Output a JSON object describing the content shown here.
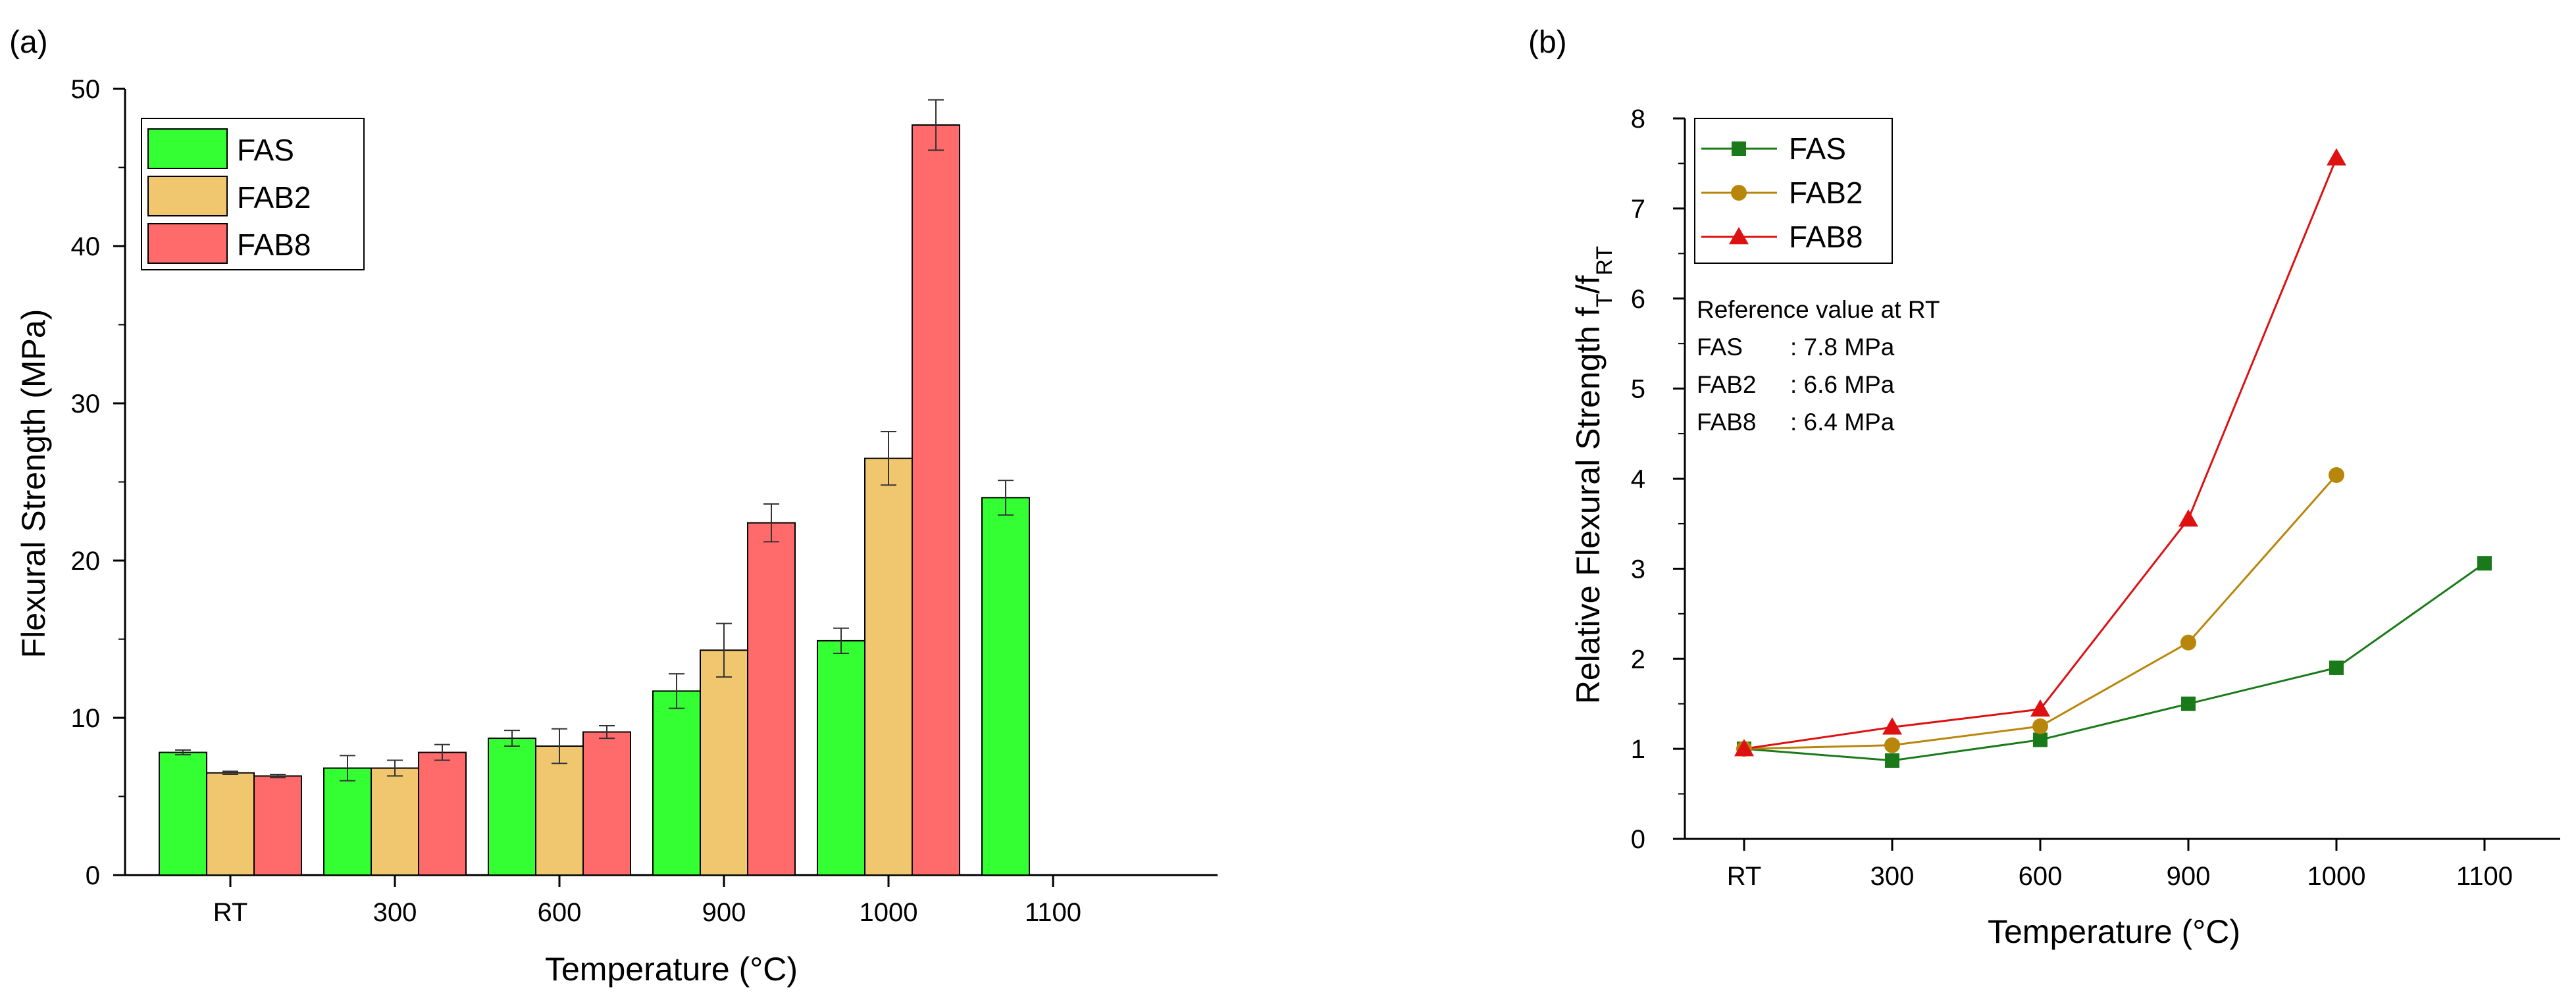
{
  "chart_data": [
    {
      "type": "bar",
      "panel_label": "(a)",
      "xlabel": "Temperature (°C)",
      "ylabel": "Flexural Strength (MPa)",
      "ylim": [
        0,
        50
      ],
      "yticks": [
        "0",
        "10",
        "20",
        "30",
        "40",
        "50"
      ],
      "categories": [
        "RT",
        "300",
        "600",
        "900",
        "1000",
        "1100"
      ],
      "legend_position": "top-left",
      "series": [
        {
          "name": "FAS",
          "color": "#33ff33",
          "values": [
            7.8,
            6.8,
            8.7,
            11.7,
            14.9,
            24.0
          ],
          "errors": [
            0.15,
            0.8,
            0.5,
            1.1,
            0.8,
            1.1
          ]
        },
        {
          "name": "FAB2",
          "color": "#f0c66e",
          "values": [
            6.5,
            6.8,
            8.2,
            14.3,
            26.5,
            null
          ],
          "errors": [
            0.1,
            0.5,
            1.1,
            1.7,
            1.7,
            null
          ]
        },
        {
          "name": "FAB8",
          "color": "#ff6b6b",
          "values": [
            6.3,
            7.8,
            9.1,
            22.4,
            47.7,
            null
          ],
          "errors": [
            0.1,
            0.5,
            0.4,
            1.2,
            1.6,
            null
          ]
        }
      ]
    },
    {
      "type": "line",
      "panel_label": "(b)",
      "xlabel": "Temperature (°C)",
      "ylabel_main": "Relative Flexural Strength f",
      "ylabel_sub1": "T",
      "ylabel_mid": "/f",
      "ylabel_sub2": "RT",
      "ylim": [
        0,
        8
      ],
      "yticks": [
        "0",
        "1",
        "2",
        "3",
        "4",
        "5",
        "6",
        "7",
        "8"
      ],
      "categories": [
        "RT",
        "300",
        "600",
        "900",
        "1000",
        "1100"
      ],
      "legend_position": "top-left",
      "series": [
        {
          "name": "FAS",
          "color": "#1a7a1a",
          "marker": "square",
          "values": [
            1.0,
            0.87,
            1.1,
            1.5,
            1.9,
            3.06
          ]
        },
        {
          "name": "FAB2",
          "color": "#b8860b",
          "marker": "circle",
          "values": [
            1.0,
            1.04,
            1.25,
            2.18,
            4.04,
            null
          ]
        },
        {
          "name": "FAB8",
          "color": "#dd1111",
          "marker": "triangle",
          "values": [
            1.0,
            1.24,
            1.44,
            3.55,
            7.56,
            null
          ]
        }
      ],
      "annotation": {
        "title": "Reference value at RT",
        "lines": [
          {
            "label": "FAS",
            "value": ": 7.8 MPa"
          },
          {
            "label": "FAB2",
            "value": ": 6.6 MPa"
          },
          {
            "label": "FAB8",
            "value": ": 6.4 MPa"
          }
        ]
      }
    }
  ]
}
